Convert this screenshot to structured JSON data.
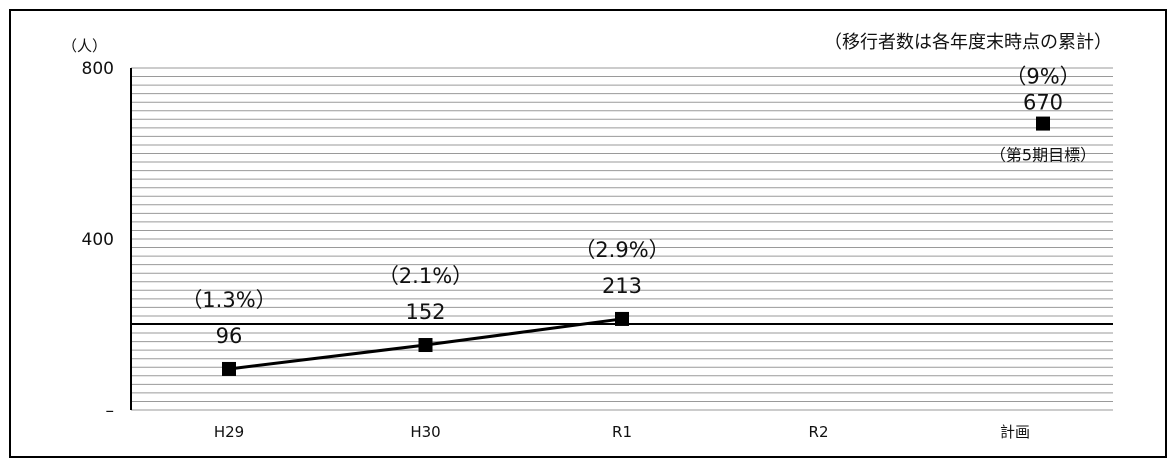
{
  "chart_data": {
    "type": "line",
    "unit_label": "（人）",
    "note": "（移行者数は各年度末時点の累計）",
    "categories": [
      "H29",
      "H30",
      "R1",
      "R2",
      "計画"
    ],
    "yticks": [
      "800",
      "400",
      "–"
    ],
    "ylim": [
      0,
      800
    ],
    "grid": true,
    "series": [
      {
        "points": [
          {
            "category": "H29",
            "value": 96,
            "value_label": "96",
            "pct_label": "（1.3%）"
          },
          {
            "category": "H30",
            "value": 152,
            "value_label": "152",
            "pct_label": "（2.1%）"
          },
          {
            "category": "R1",
            "value": 213,
            "value_label": "213",
            "pct_label": "（2.9%）"
          }
        ]
      }
    ],
    "target": {
      "category": "計画",
      "value": 670,
      "value_label": "670",
      "pct_label": "（9%）",
      "sub_label": "（第5期目標）"
    }
  }
}
